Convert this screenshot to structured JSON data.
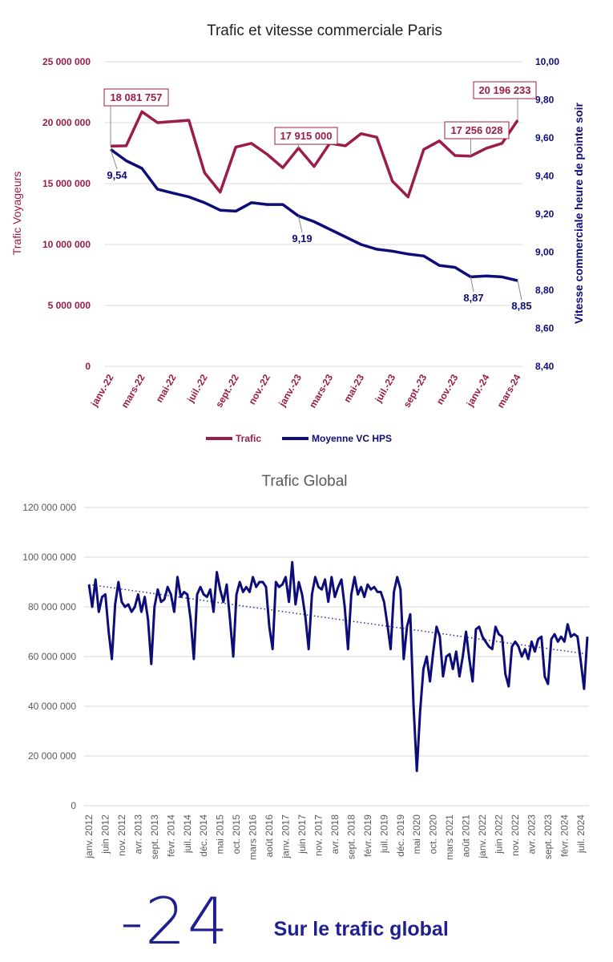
{
  "colors": {
    "trafic": "#9b1c4a",
    "vc": "#0d0d7a",
    "trend": "#2a2a95",
    "grid": "#d9d9d9",
    "text_main": "#222222",
    "text_gray": "#595959"
  },
  "chart_data": [
    {
      "type": "line",
      "title": "Trafic et vitesse commerciale Paris",
      "ylabel_left": "Trafic Voyageurs",
      "ylabel_right": "Vitesse commerciale heure de pointe soir",
      "ylim_left": [
        0,
        25000000
      ],
      "ylim_right": [
        8.4,
        10.0
      ],
      "left_ticks": [
        "0",
        "5 000 000",
        "10 000 000",
        "15 000 000",
        "20 000 000",
        "25 000 000"
      ],
      "right_ticks": [
        "8,40",
        "8,60",
        "8,80",
        "9,00",
        "9,20",
        "9,40",
        "9,60",
        "9,80",
        "10,00"
      ],
      "x_labels": [
        "janv.-22",
        "mars-22",
        "mai-22",
        "juil.-22",
        "sept.-22",
        "nov.-22",
        "janv.-23",
        "mars-23",
        "mai-23",
        "juil.-23",
        "sept.-23",
        "nov.-23",
        "janv.-24",
        "mars-24"
      ],
      "series": [
        {
          "name": "Trafic",
          "axis": "left",
          "values": [
            18081757,
            18100000,
            20900000,
            20000000,
            20100000,
            20200000,
            15900000,
            14300000,
            18000000,
            18300000,
            17400000,
            16300000,
            17915000,
            16400000,
            18300000,
            18100000,
            19100000,
            18800000,
            15200000,
            13900000,
            17800000,
            18500000,
            17300000,
            17256028,
            17900000,
            18300000,
            20196233
          ]
        },
        {
          "name": "Moyenne VC HPS",
          "axis": "right",
          "values": [
            9.54,
            9.48,
            9.44,
            9.33,
            9.31,
            9.29,
            9.26,
            9.22,
            9.215,
            9.26,
            9.25,
            9.25,
            9.19,
            9.16,
            9.12,
            9.08,
            9.04,
            9.015,
            9.005,
            8.99,
            8.98,
            8.93,
            8.92,
            8.87,
            8.875,
            8.87,
            8.85
          ]
        }
      ],
      "annotations": [
        {
          "text": "18 081 757",
          "series": "Trafic",
          "index": 0
        },
        {
          "text": "17 915 000",
          "series": "Trafic",
          "index": 12
        },
        {
          "text": "17 256 028",
          "series": "Trafic",
          "index": 23
        },
        {
          "text": "20 196 233",
          "series": "Trafic",
          "index": 26
        },
        {
          "text": "9,54",
          "series": "Moyenne VC HPS",
          "index": 0
        },
        {
          "text": "9,19",
          "series": "Moyenne VC HPS",
          "index": 12
        },
        {
          "text": "8,87",
          "series": "Moyenne VC HPS",
          "index": 23
        },
        {
          "text": "8,85",
          "series": "Moyenne VC HPS",
          "index": 26
        }
      ],
      "legend": [
        "Trafic",
        "Moyenne VC HPS"
      ]
    },
    {
      "type": "line",
      "title": "Trafic Global",
      "ylim": [
        0,
        120000000
      ],
      "y_ticks": [
        "0",
        "20 000 000",
        "40 000 000",
        "60 000 000",
        "80 000 000",
        "100 000 000",
        "120 000 000"
      ],
      "x_labels": [
        "janv. 2012",
        "juin 2012",
        "nov. 2012",
        "avr. 2013",
        "sept. 2013",
        "févr. 2014",
        "juil. 2014",
        "déc. 2014",
        "mai 2015",
        "oct. 2015",
        "mars 2016",
        "août 2016",
        "janv. 2017",
        "juin 2017",
        "nov. 2017",
        "avr. 2018",
        "sept. 2018",
        "févr. 2019",
        "juil. 2019",
        "déc. 2019",
        "mai 2020",
        "oct. 2020",
        "mars 2021",
        "août 2021",
        "janv. 2022",
        "juin 2022",
        "nov. 2022",
        "avr. 2023",
        "sept. 2023",
        "févr. 2024",
        "juil. 2024"
      ],
      "trend": {
        "start": 89000000,
        "end": 61000000
      },
      "series": [
        {
          "name": "Trafic Global",
          "values": [
            89,
            80,
            91,
            78,
            84,
            85,
            70,
            59,
            81,
            90,
            82,
            80,
            81,
            78,
            80,
            85,
            78,
            84,
            75,
            57,
            80,
            87,
            82,
            83,
            88,
            85,
            78,
            92,
            84,
            86,
            85,
            75,
            59,
            85,
            88,
            85,
            84,
            87,
            78,
            94,
            87,
            82,
            89,
            75,
            60,
            85,
            90,
            86,
            88,
            86,
            92,
            88,
            90,
            90,
            88,
            72,
            63,
            90,
            88,
            89,
            92,
            82,
            98,
            81,
            90,
            85,
            76,
            63,
            85,
            92,
            88,
            87,
            91,
            82,
            92,
            84,
            88,
            91,
            80,
            63,
            85,
            92,
            85,
            88,
            84,
            89,
            87,
            88,
            86,
            86,
            82,
            73,
            63,
            86,
            92,
            87,
            59,
            72,
            77,
            40,
            14,
            38,
            55,
            60,
            50,
            62,
            72,
            68,
            52,
            60,
            61,
            55,
            62,
            52,
            60,
            70,
            59,
            50,
            71,
            72,
            68,
            66,
            64,
            63,
            72,
            69,
            68,
            53,
            48,
            64,
            66,
            64,
            60,
            63,
            59,
            66,
            62,
            67,
            68,
            52,
            49,
            67,
            69,
            66,
            68,
            66,
            73,
            68,
            69,
            68,
            58,
            47,
            68
          ]
        }
      ]
    }
  ],
  "bottom": {
    "number": "-24",
    "caption": "Sur le trafic global"
  }
}
